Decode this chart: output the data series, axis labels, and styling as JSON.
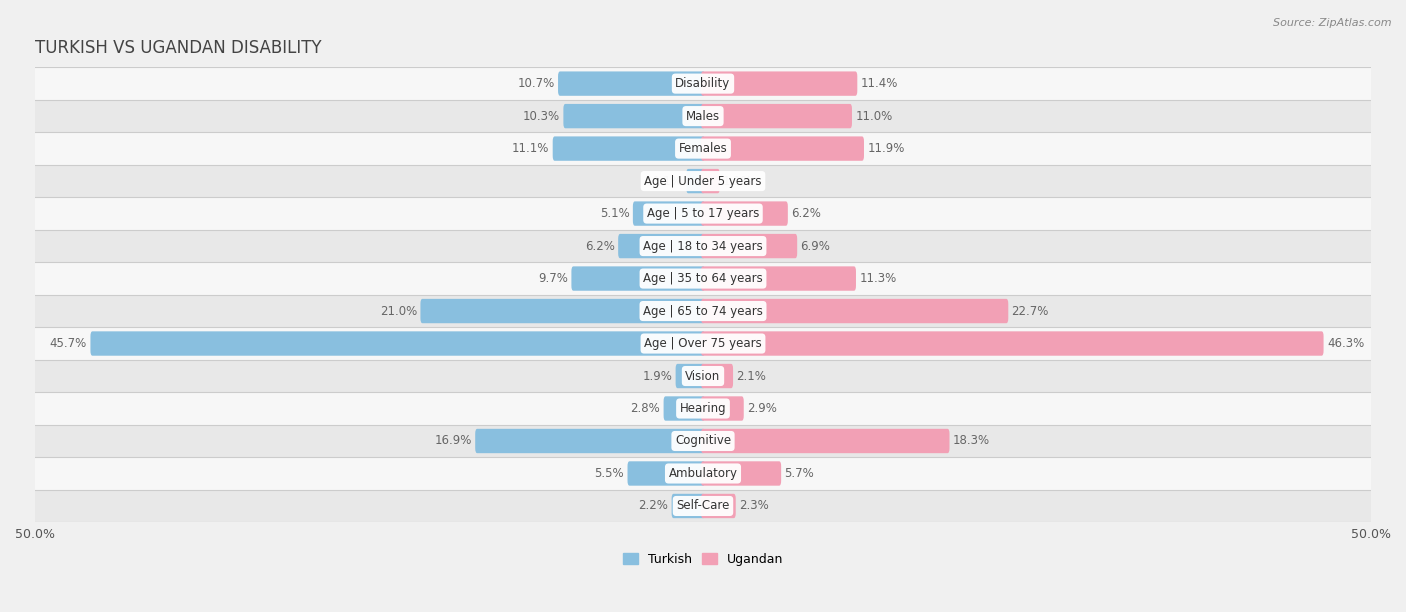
{
  "title": "TURKISH VS UGANDAN DISABILITY",
  "source": "Source: ZipAtlas.com",
  "categories": [
    "Disability",
    "Males",
    "Females",
    "Age | Under 5 years",
    "Age | 5 to 17 years",
    "Age | 18 to 34 years",
    "Age | 35 to 64 years",
    "Age | 65 to 74 years",
    "Age | Over 75 years",
    "Vision",
    "Hearing",
    "Cognitive",
    "Ambulatory",
    "Self-Care"
  ],
  "turkish_values": [
    10.7,
    10.3,
    11.1,
    1.1,
    5.1,
    6.2,
    9.7,
    21.0,
    45.7,
    1.9,
    2.8,
    16.9,
    5.5,
    2.2
  ],
  "ugandan_values": [
    11.4,
    11.0,
    11.9,
    1.1,
    6.2,
    6.9,
    11.3,
    22.7,
    46.3,
    2.1,
    2.9,
    18.3,
    5.7,
    2.3
  ],
  "turkish_color": "#89BFDF",
  "ugandan_color": "#F2A0B5",
  "turkish_color_dark": "#5A9EC9",
  "ugandan_color_dark": "#E8758F",
  "background_color": "#f0f0f0",
  "row_light": "#f7f7f7",
  "row_dark": "#e8e8e8",
  "axis_max": 50.0,
  "title_fontsize": 12,
  "label_fontsize": 8.5,
  "category_fontsize": 8.5,
  "legend_fontsize": 9,
  "value_color": "#666666"
}
